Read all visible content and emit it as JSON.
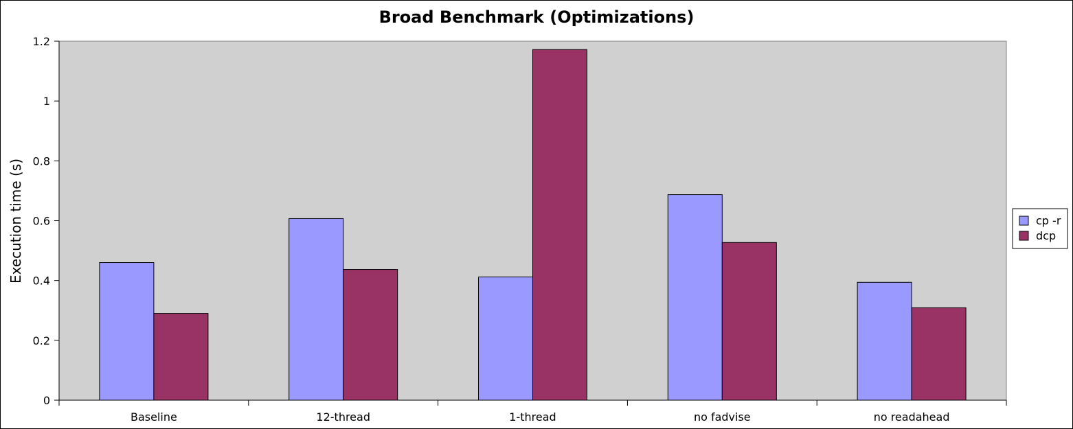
{
  "chart_data": {
    "type": "bar",
    "title": "Broad Benchmark (Optimizations)",
    "xlabel": "",
    "ylabel": "Execution time (s)",
    "categories": [
      "Baseline",
      "12-thread",
      "1-thread",
      "no fadvise",
      "no readahead"
    ],
    "series": [
      {
        "name": "cp -r",
        "color": "#9999ff",
        "values": [
          0.46,
          0.607,
          0.412,
          0.687,
          0.394
        ]
      },
      {
        "name": "dcp",
        "color": "#993366",
        "values": [
          0.29,
          0.437,
          1.172,
          0.527,
          0.309
        ]
      }
    ],
    "ylim": [
      0,
      1.2
    ],
    "yticks": [
      0,
      0.2,
      0.4,
      0.6,
      0.8,
      1,
      1.2
    ],
    "ytick_labels": [
      "0",
      "0.2",
      "0.4",
      "0.6",
      "0.8",
      "1",
      "1.2"
    ],
    "grid": false,
    "legend_position": "right",
    "plot_background": "#d0d0d0"
  }
}
